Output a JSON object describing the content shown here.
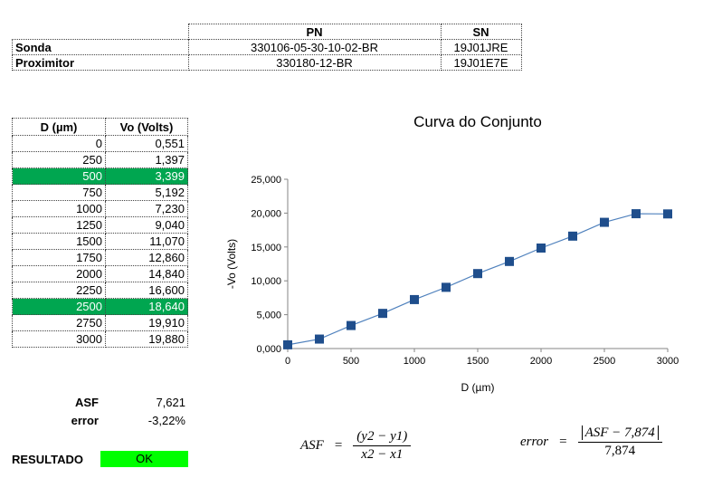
{
  "info_table": {
    "headers": {
      "pn": "PN",
      "sn": "SN"
    },
    "rows": [
      {
        "label": "Sonda",
        "pn": "330106-05-30-10-02-BR",
        "sn": "19J01JRE"
      },
      {
        "label": "Proximitor",
        "pn": "330180-12-BR",
        "sn": "19J01E7E"
      }
    ]
  },
  "data_table": {
    "headers": {
      "d": "D (µm)",
      "vo": "Vo (Volts)"
    },
    "rows": [
      {
        "d": "0",
        "vo": "0,551",
        "highlight": false
      },
      {
        "d": "250",
        "vo": "1,397",
        "highlight": false
      },
      {
        "d": "500",
        "vo": "3,399",
        "highlight": true
      },
      {
        "d": "750",
        "vo": "5,192",
        "highlight": false
      },
      {
        "d": "1000",
        "vo": "7,230",
        "highlight": false
      },
      {
        "d": "1250",
        "vo": "9,040",
        "highlight": false
      },
      {
        "d": "1500",
        "vo": "11,070",
        "highlight": false
      },
      {
        "d": "1750",
        "vo": "12,860",
        "highlight": false
      },
      {
        "d": "2000",
        "vo": "14,840",
        "highlight": false
      },
      {
        "d": "2250",
        "vo": "16,600",
        "highlight": false
      },
      {
        "d": "2500",
        "vo": "18,640",
        "highlight": true
      },
      {
        "d": "2750",
        "vo": "19,910",
        "highlight": false
      },
      {
        "d": "3000",
        "vo": "19,880",
        "highlight": false
      }
    ],
    "highlight_color": "#00a650"
  },
  "summary": {
    "asf_label": "ASF",
    "asf_value": "7,621",
    "error_label": "error",
    "error_value": "-3,22%"
  },
  "result": {
    "label": "RESULTADO",
    "value": "OK",
    "color": "#00ff00"
  },
  "chart_data": {
    "type": "line",
    "title": "Curva do Conjunto",
    "xlabel": "D (µm)",
    "ylabel": "-Vo (Volts)",
    "x": [
      0,
      250,
      500,
      750,
      1000,
      1250,
      1500,
      1750,
      2000,
      2250,
      2500,
      2750,
      3000
    ],
    "series": [
      {
        "values": [
          0.551,
          1.397,
          3.399,
          5.192,
          7.23,
          9.04,
          11.07,
          12.86,
          14.84,
          16.6,
          18.64,
          19.91,
          19.88
        ]
      }
    ],
    "xlim": [
      0,
      3000
    ],
    "ylim": [
      0,
      25
    ],
    "x_ticks": [
      "0",
      "500",
      "1000",
      "1500",
      "2000",
      "2500",
      "3000"
    ],
    "y_ticks": [
      "0,000",
      "5,000",
      "10,000",
      "15,000",
      "20,000",
      "25,000"
    ],
    "grid": false,
    "line_color": "#4f81bd",
    "marker_color": "#1f4e8c"
  },
  "formulas": {
    "asf": {
      "lhs": "ASF",
      "eq": "=",
      "num": "(y2 − y1)",
      "den": "x2 − x1"
    },
    "error": {
      "lhs": "error",
      "eq": "=",
      "num_abs": "ASF − 7,874",
      "den": "7,874"
    }
  }
}
